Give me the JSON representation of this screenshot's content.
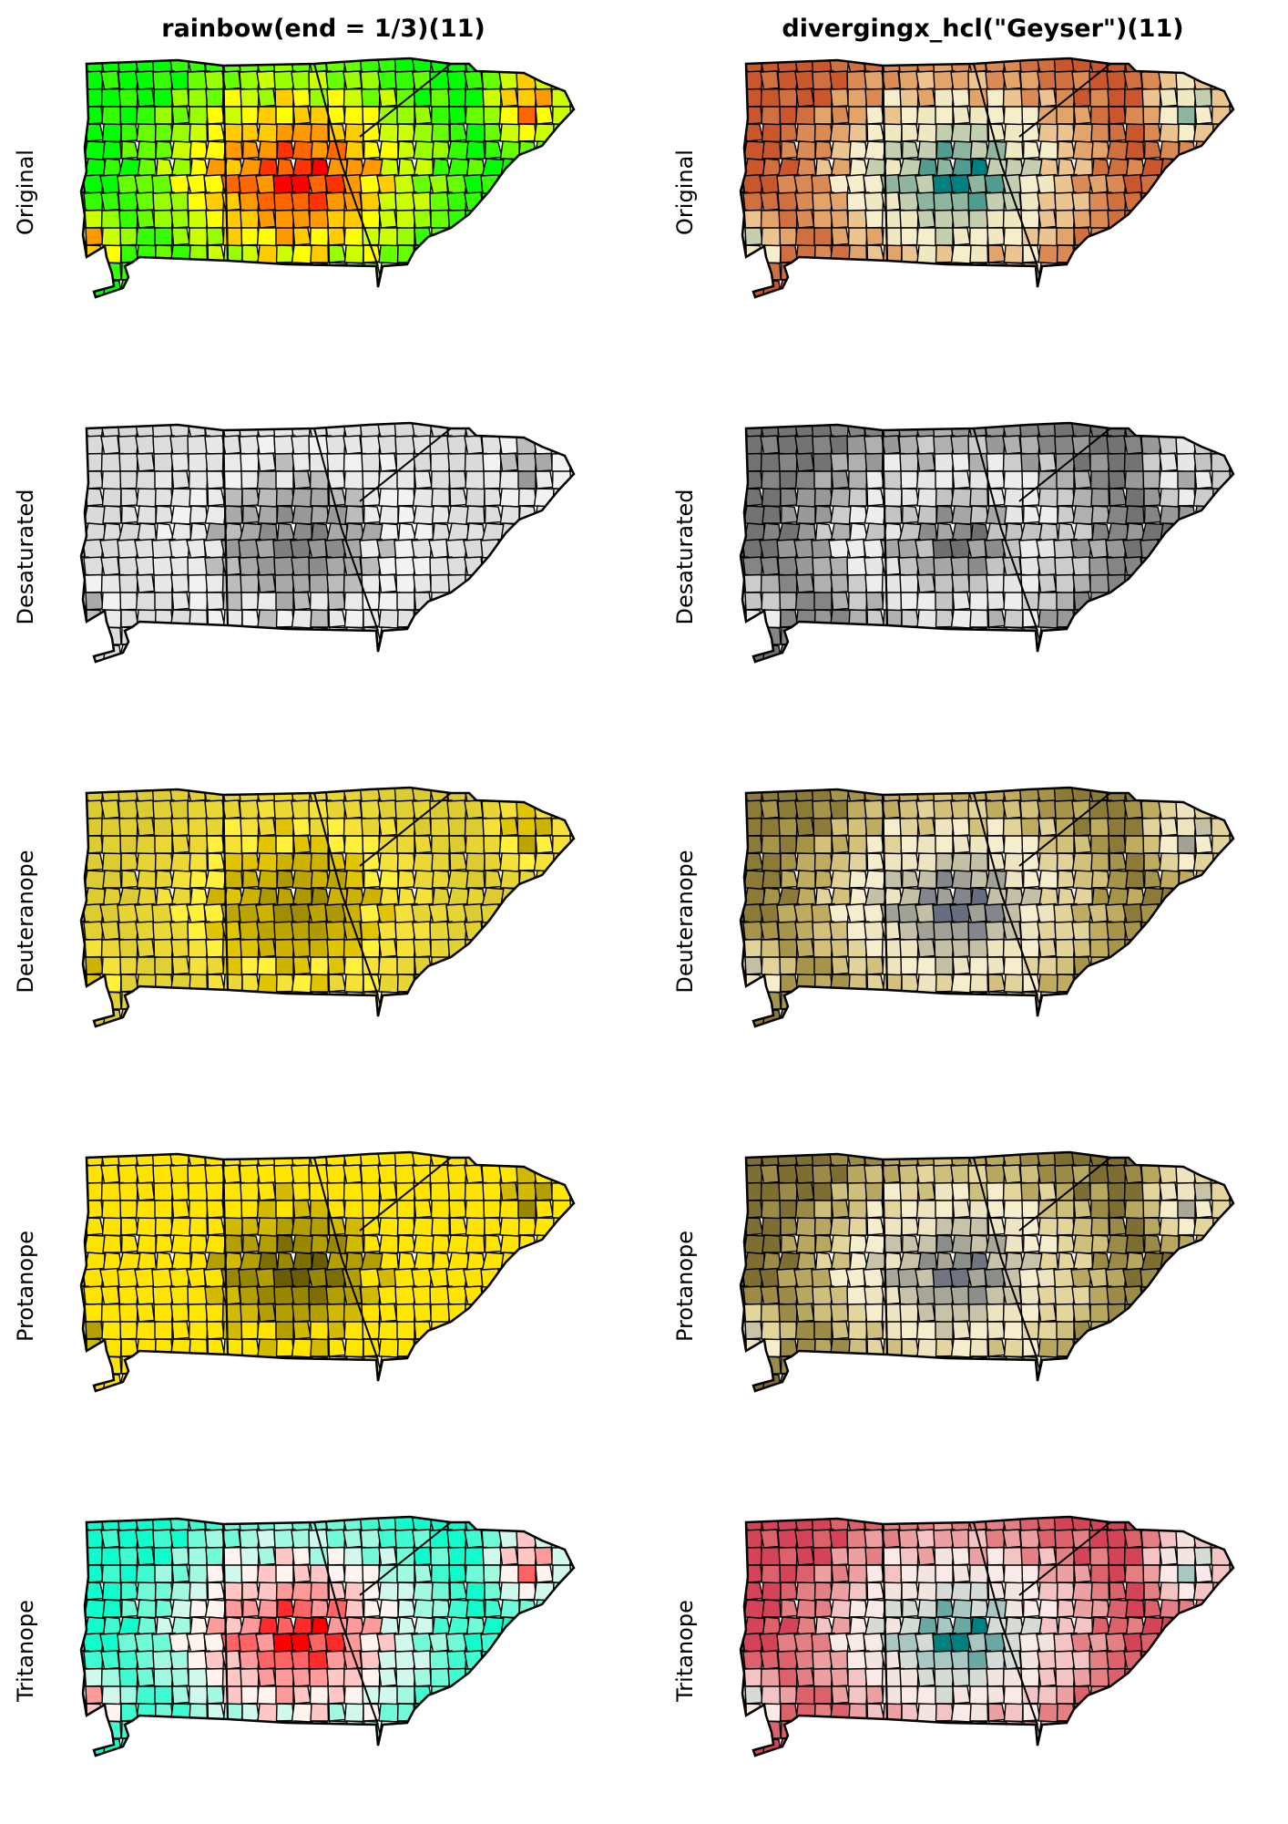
{
  "columns": [
    {
      "title": "rainbow(end = 1/3)(11)",
      "palette": "rainbow"
    },
    {
      "title": "divergingx_hcl(\"Geyser\")(11)",
      "palette": "geyser"
    }
  ],
  "rows": [
    {
      "label": "Original",
      "mode": "original"
    },
    {
      "label": "Desaturated",
      "mode": "desaturated"
    },
    {
      "label": "Deuteranope",
      "mode": "deuteranope"
    },
    {
      "label": "Protanope",
      "mode": "protanope"
    },
    {
      "label": "Tritanope",
      "mode": "tritanope"
    }
  ],
  "palettes": {
    "rainbow": {
      "original": [
        "#FF0000",
        "#FF3300",
        "#FF6600",
        "#FF9900",
        "#FFCC00",
        "#FFFF00",
        "#CCFF00",
        "#99FF00",
        "#66FF00",
        "#33FF00",
        "#00FF00"
      ],
      "desaturated": [
        "#7F7F7F",
        "#8C8C8C",
        "#999999",
        "#A9A9A9",
        "#BCBCBC",
        "#EAEAEA",
        "#F2F2F2",
        "#E8E8E8",
        "#E2E2E2",
        "#DDDDDD",
        "#DADADA"
      ],
      "deuteranope": [
        "#A08D00",
        "#AE9900",
        "#BCA500",
        "#CDB300",
        "#E0C500",
        "#FFF03C",
        "#F5E138",
        "#EBD835",
        "#E6D533",
        "#E1D032",
        "#DCCB31"
      ],
      "protanope": [
        "#6A5C00",
        "#7D6E00",
        "#9A8700",
        "#B49F00",
        "#D2BA00",
        "#FFE400",
        "#FFE700",
        "#FFE600",
        "#FFE500",
        "#FFE400",
        "#FFE300"
      ],
      "tritanope": [
        "#FF0000",
        "#FF2A2A",
        "#FF6464",
        "#FF9A9A",
        "#FFC6C6",
        "#FFF3F0",
        "#D0F8EC",
        "#A0F9E0",
        "#70FAD8",
        "#40FBD2",
        "#10FCCC"
      ]
    },
    "geyser": {
      "original": [
        "#008080",
        "#509C8F",
        "#8EB69F",
        "#C4CFB0",
        "#F0E8C0",
        "#F6EDCA",
        "#EBC48F",
        "#E3A46A",
        "#DA8A52",
        "#D1703F",
        "#CA562C"
      ],
      "desaturated": [
        "#6F6F6F",
        "#8C8C8C",
        "#A6A6A6",
        "#C4C4C4",
        "#E6E6E6",
        "#EDEDED",
        "#CCCCCC",
        "#B0B0B0",
        "#999999",
        "#858585",
        "#737373"
      ],
      "deuteranope": [
        "#666E7F",
        "#83878B",
        "#A2A196",
        "#C4C0A6",
        "#EFE4C0",
        "#F6EDCC",
        "#E2D39A",
        "#D3C07A",
        "#C0AC5E",
        "#A69449",
        "#8C7B36"
      ],
      "protanope": [
        "#707480",
        "#8C8E8A",
        "#A8A696",
        "#C8C2A8",
        "#EFE4C1",
        "#F6EDCC",
        "#E3D59C",
        "#CFBF7C",
        "#B8A75E",
        "#9C8B46",
        "#7E6E31"
      ],
      "tritanope": [
        "#008080",
        "#6AA8A4",
        "#A8C7C2",
        "#D5DCD5",
        "#F3E4E0",
        "#F9EAE8",
        "#F4C4C4",
        "#EDA0A2",
        "#E48084",
        "#DC616A",
        "#D44357"
      ]
    }
  }
}
